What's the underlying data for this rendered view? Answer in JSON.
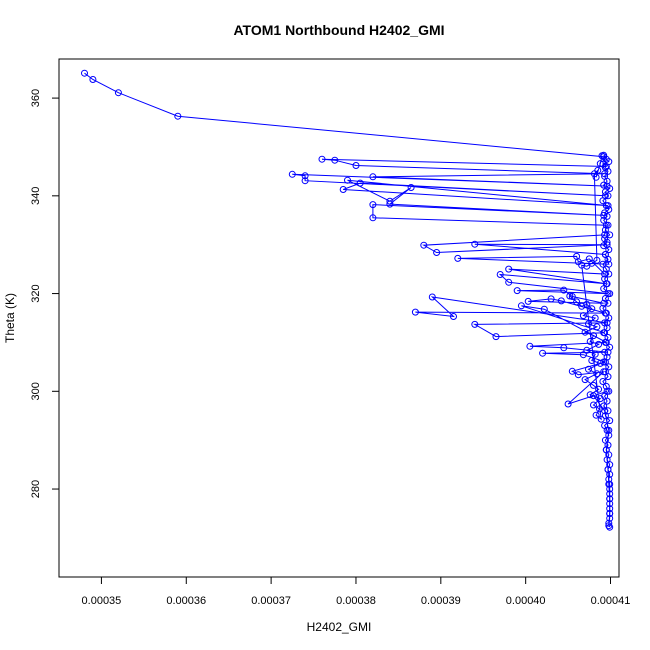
{
  "chart_data": {
    "type": "scatter",
    "title": "ATOM1 Northbound H2402_GMI",
    "xlabel": "H2402_GMI",
    "ylabel": "Theta (K)",
    "xlim": [
      0.000345,
      0.000411
    ],
    "ylim": [
      262,
      368
    ],
    "xticks": [
      0.00035,
      0.00036,
      0.00037,
      0.00038,
      0.00039,
      0.0004,
      0.00041
    ],
    "xtick_labels": [
      "0.00035",
      "0.00036",
      "0.00037",
      "0.00038",
      "0.00039",
      "0.00040",
      "0.00041"
    ],
    "yticks": [
      280,
      300,
      320,
      340,
      360
    ],
    "ytick_labels": [
      "280",
      "300",
      "320",
      "340",
      "360"
    ],
    "grid": false,
    "connect_points": true,
    "marker": "open-circle",
    "color": "#0000ff",
    "series": [
      {
        "values_xy": [
          [
            0.000348,
            365.1
          ],
          [
            0.000349,
            363.8
          ],
          [
            0.000352,
            361.1
          ],
          [
            0.000359,
            356.3
          ],
          [
            0.0004092,
            348.0
          ],
          [
            0.0004095,
            346.0
          ],
          [
            0.000376,
            347.5
          ],
          [
            0.0003775,
            347.3
          ],
          [
            0.00038,
            346.2
          ],
          [
            0.0004093,
            344.5
          ],
          [
            0.000382,
            343.9
          ],
          [
            0.0004096,
            342.0
          ],
          [
            0.0003725,
            344.4
          ],
          [
            0.000374,
            344.1
          ],
          [
            0.000374,
            343.1
          ],
          [
            0.0004094,
            340.0
          ],
          [
            0.0003805,
            342.6
          ],
          [
            0.0003785,
            341.3
          ],
          [
            0.0004097,
            338.0
          ],
          [
            0.000379,
            343.2
          ],
          [
            0.000384,
            338.9
          ],
          [
            0.0003865,
            341.7
          ],
          [
            0.000384,
            338.3
          ],
          [
            0.0004092,
            336.0
          ],
          [
            0.000382,
            338.2
          ],
          [
            0.000382,
            335.5
          ],
          [
            0.0004095,
            334.0
          ],
          [
            0.0004093,
            332.0
          ],
          [
            0.000388,
            329.9
          ],
          [
            0.0003895,
            328.4
          ],
          [
            0.0004096,
            330.0
          ],
          [
            0.000394,
            330.1
          ],
          [
            0.0004094,
            328.0
          ],
          [
            0.0004098,
            326.0
          ],
          [
            0.000392,
            327.2
          ],
          [
            0.000406,
            327.6
          ],
          [
            0.0004062,
            326.5
          ],
          [
            0.0004075,
            327.1
          ],
          [
            0.0004093,
            324.0
          ],
          [
            0.000398,
            325.0
          ],
          [
            0.0004095,
            322.0
          ],
          [
            0.000397,
            323.9
          ],
          [
            0.000398,
            322.3
          ],
          [
            0.0004097,
            320.0
          ],
          [
            0.000399,
            320.6
          ],
          [
            0.0004045,
            320.7
          ],
          [
            0.0004055,
            319.4
          ],
          [
            0.0004092,
            318.0
          ],
          [
            0.0004003,
            318.4
          ],
          [
            0.000403,
            318.9
          ],
          [
            0.0004042,
            318.5
          ],
          [
            0.0004094,
            316.0
          ],
          [
            0.000387,
            316.2
          ],
          [
            0.0003915,
            315.3
          ],
          [
            0.000389,
            319.3
          ],
          [
            0.0004096,
            314.0
          ],
          [
            0.000394,
            313.7
          ],
          [
            0.0003965,
            311.2
          ],
          [
            0.0004093,
            312.0
          ],
          [
            0.0003995,
            317.5
          ],
          [
            0.0004022,
            316.8
          ],
          [
            0.0004095,
            310.0
          ],
          [
            0.0004005,
            309.2
          ],
          [
            0.0004045,
            308.9
          ],
          [
            0.0004097,
            308.0
          ],
          [
            0.000402,
            307.8
          ],
          [
            0.0004068,
            307.5
          ],
          [
            0.0004094,
            306.0
          ],
          [
            0.0004055,
            304.1
          ],
          [
            0.0004062,
            303.4
          ],
          [
            0.0004092,
            304.0
          ],
          [
            0.000405,
            297.4
          ],
          [
            0.0004096,
            300.0
          ],
          [
            0.000408,
            299.1
          ],
          [
            0.0004093,
            296.0
          ],
          [
            0.0004098,
            292.0
          ],
          [
            0.0004095,
            288.0
          ],
          [
            0.0004097,
            284.0
          ],
          [
            0.0004098,
            281.0
          ],
          [
            0.0004099,
            278.0
          ],
          [
            0.0004099,
            275.0
          ],
          [
            0.0004098,
            272.5
          ]
        ]
      },
      {
        "values_xy": [
          [
            0.0004092,
            348.3
          ],
          [
            0.0004095,
            347.5
          ],
          [
            0.0004098,
            347.0
          ],
          [
            0.0004091,
            346.5
          ],
          [
            0.0004094,
            345.8
          ],
          [
            0.0004097,
            345.0
          ],
          [
            0.0004093,
            344.0
          ],
          [
            0.0004096,
            343.0
          ],
          [
            0.0004092,
            342.2
          ],
          [
            0.0004099,
            341.5
          ],
          [
            0.0004094,
            340.8
          ],
          [
            0.0004097,
            340.0
          ],
          [
            0.0004091,
            339.0
          ],
          [
            0.0004095,
            338.0
          ],
          [
            0.0004098,
            337.2
          ],
          [
            0.0004093,
            336.5
          ],
          [
            0.0004096,
            335.8
          ],
          [
            0.0004092,
            335.0
          ],
          [
            0.0004097,
            334.0
          ],
          [
            0.0004094,
            333.0
          ],
          [
            0.0004099,
            332.0
          ],
          [
            0.0004093,
            331.2
          ],
          [
            0.0004096,
            330.5
          ],
          [
            0.0004092,
            329.8
          ],
          [
            0.0004098,
            329.0
          ],
          [
            0.0004094,
            328.0
          ],
          [
            0.0004097,
            327.0
          ],
          [
            0.0004091,
            326.0
          ],
          [
            0.0004095,
            325.0
          ],
          [
            0.0004098,
            324.0
          ],
          [
            0.0004093,
            323.0
          ],
          [
            0.0004096,
            322.0
          ],
          [
            0.0004092,
            321.0
          ],
          [
            0.0004099,
            320.0
          ],
          [
            0.0004094,
            319.0
          ],
          [
            0.0004097,
            318.0
          ],
          [
            0.0004091,
            317.0
          ],
          [
            0.0004095,
            316.0
          ],
          [
            0.0004098,
            315.0
          ],
          [
            0.0004093,
            314.0
          ],
          [
            0.0004096,
            313.0
          ],
          [
            0.0004092,
            312.0
          ],
          [
            0.0004097,
            311.0
          ],
          [
            0.0004094,
            310.0
          ],
          [
            0.0004099,
            309.0
          ],
          [
            0.0004093,
            308.0
          ],
          [
            0.0004096,
            307.0
          ],
          [
            0.0004092,
            306.0
          ],
          [
            0.0004098,
            305.0
          ],
          [
            0.0004094,
            304.0
          ],
          [
            0.0004097,
            303.0
          ],
          [
            0.0004091,
            302.0
          ],
          [
            0.0004095,
            301.0
          ],
          [
            0.0004098,
            300.0
          ],
          [
            0.0004093,
            299.0
          ],
          [
            0.0004096,
            298.0
          ],
          [
            0.0004092,
            297.0
          ],
          [
            0.0004097,
            296.0
          ],
          [
            0.0004094,
            295.0
          ],
          [
            0.0004099,
            294.0
          ],
          [
            0.0004093,
            293.0
          ],
          [
            0.0004096,
            292.0
          ],
          [
            0.0004098,
            291.0
          ],
          [
            0.0004094,
            290.0
          ],
          [
            0.0004097,
            289.0
          ],
          [
            0.0004095,
            288.0
          ],
          [
            0.0004098,
            287.0
          ],
          [
            0.0004096,
            286.0
          ],
          [
            0.0004099,
            285.0
          ],
          [
            0.0004097,
            284.0
          ],
          [
            0.0004099,
            283.0
          ],
          [
            0.0004098,
            282.0
          ],
          [
            0.0004099,
            281.0
          ],
          [
            0.0004099,
            280.0
          ],
          [
            0.0004099,
            279.0
          ],
          [
            0.0004099,
            278.0
          ],
          [
            0.0004099,
            277.0
          ],
          [
            0.0004099,
            276.0
          ],
          [
            0.0004099,
            275.0
          ],
          [
            0.0004099,
            274.0
          ],
          [
            0.0004098,
            273.0
          ],
          [
            0.0004099,
            272.2
          ]
        ]
      },
      {
        "values_xy": [
          [
            0.0004052,
            319.5
          ],
          [
            0.000406,
            318.3
          ],
          [
            0.0004066,
            317.4
          ],
          [
            0.0004072,
            317.8
          ],
          [
            0.0004078,
            316.9
          ],
          [
            0.0004068,
            315.5
          ],
          [
            0.0004082,
            315.0
          ],
          [
            0.0004074,
            313.8
          ],
          [
            0.0004084,
            313.2
          ],
          [
            0.000407,
            312.1
          ],
          [
            0.000408,
            311.4
          ],
          [
            0.0004076,
            310.2
          ],
          [
            0.0004086,
            309.6
          ],
          [
            0.0004072,
            308.4
          ],
          [
            0.0004082,
            307.6
          ],
          [
            0.0004078,
            306.3
          ],
          [
            0.0004088,
            305.7
          ],
          [
            0.0004074,
            304.5
          ],
          [
            0.0004084,
            303.6
          ],
          [
            0.000407,
            302.4
          ],
          [
            0.000408,
            301.2
          ],
          [
            0.0004086,
            300.4
          ],
          [
            0.0004076,
            299.3
          ],
          [
            0.0004088,
            298.5
          ],
          [
            0.000408,
            297.2
          ],
          [
            0.0004087,
            296.4
          ],
          [
            0.0004083,
            295.1
          ],
          [
            0.0004089,
            294.3
          ],
          [
            0.0004066,
            325.8
          ],
          [
            0.0004072,
            325.6
          ],
          [
            0.0004078,
            326.2
          ],
          [
            0.0004084,
            326.8
          ],
          [
            0.0004081,
            344.5
          ],
          [
            0.0004085,
            345.2
          ],
          [
            0.0004083,
            343.8
          ],
          [
            0.0004088,
            346.6
          ],
          [
            0.000409,
            348.2
          ]
        ]
      }
    ]
  }
}
